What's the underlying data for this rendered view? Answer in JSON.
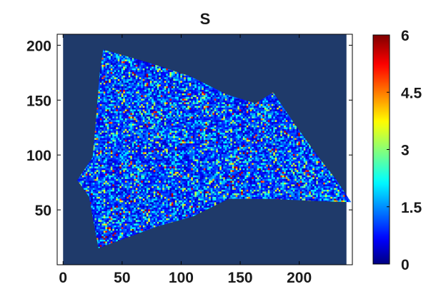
{
  "chart_data": {
    "type": "heatmap",
    "title": "S",
    "xlabel": "",
    "ylabel": "",
    "xlim": [
      -5,
      245
    ],
    "ylim": [
      0,
      210
    ],
    "xticks": [
      "0",
      "50",
      "100",
      "150",
      "200"
    ],
    "xtick_values": [
      0,
      50,
      100,
      150,
      200
    ],
    "yticks": [
      "50",
      "100",
      "150",
      "200"
    ],
    "ytick_values": [
      50,
      100,
      150,
      200
    ],
    "image_extent": {
      "x": [
        0,
        240
      ],
      "y": [
        0,
        210
      ]
    },
    "background_value": 0,
    "region_outline": [
      [
        34,
        196
      ],
      [
        70,
        185
      ],
      [
        107,
        172
      ],
      [
        139,
        155
      ],
      [
        163,
        147
      ],
      [
        178,
        157
      ],
      [
        195,
        130
      ],
      [
        215,
        100
      ],
      [
        231,
        78
      ],
      [
        244,
        57
      ],
      [
        215,
        58
      ],
      [
        175,
        60
      ],
      [
        140,
        60
      ],
      [
        110,
        44
      ],
      [
        80,
        35
      ],
      [
        55,
        25
      ],
      [
        30,
        15
      ],
      [
        26,
        38
      ],
      [
        22,
        62
      ],
      [
        12,
        77
      ],
      [
        25,
        98
      ],
      [
        28,
        134
      ],
      [
        31,
        175
      ]
    ],
    "colorbar": {
      "min": 0,
      "max": 6,
      "ticks": [
        "0",
        "1.5",
        "3",
        "4.5",
        "6"
      ],
      "tick_values": [
        0,
        1.5,
        3,
        4.5,
        6
      ],
      "colormap": "jet"
    },
    "grid": false,
    "colors": {
      "background": "#1f3a6a",
      "colormap_stops": [
        "#000080",
        "#0000ff",
        "#00ffff",
        "#ffff00",
        "#ff0000",
        "#800000"
      ]
    }
  }
}
